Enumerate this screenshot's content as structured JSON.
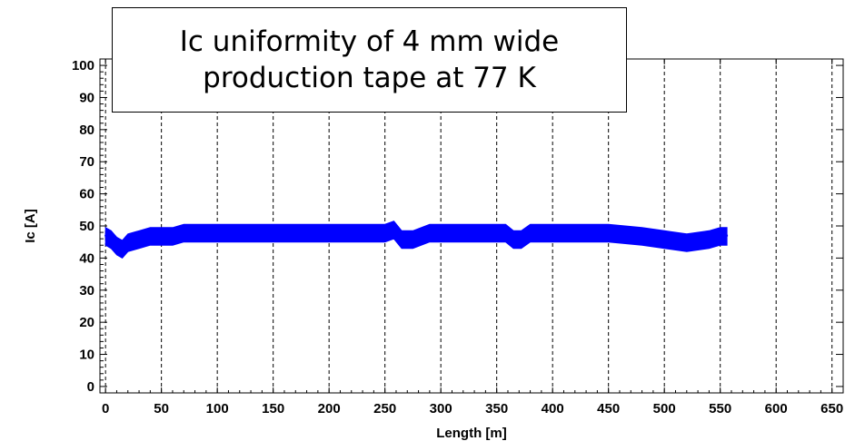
{
  "chart_data": {
    "type": "scatter",
    "title": "Ic uniformity of 4 mm wide production tape at 77 K",
    "title_lines": [
      "Ic uniformity of 4 mm wide",
      "production tape at 77 K"
    ],
    "xlabel": "Length [m]",
    "ylabel": "Ic [A]",
    "xlim": [
      -5,
      660
    ],
    "ylim": [
      -2,
      102
    ],
    "x_ticks": [
      0,
      50,
      100,
      150,
      200,
      250,
      300,
      350,
      400,
      450,
      500,
      550,
      600,
      650
    ],
    "y_ticks": [
      0,
      10,
      20,
      30,
      40,
      50,
      60,
      70,
      80,
      90,
      100
    ],
    "grid": "vertical dashed",
    "marker_color": "#0000ff",
    "series": [
      {
        "x": [
          0,
          5,
          10,
          15,
          20,
          30,
          40,
          50,
          60,
          70,
          80,
          100,
          120,
          150,
          180,
          200,
          230,
          250,
          258,
          265,
          275,
          290,
          300,
          320,
          340,
          350,
          358,
          365,
          372,
          380,
          390,
          400,
          420,
          450,
          480,
          500,
          520,
          540,
          550,
          556
        ],
        "y": [
          47,
          46,
          44,
          43,
          45,
          46,
          47,
          47,
          47,
          48,
          48,
          48,
          48,
          48,
          48,
          48,
          48,
          48,
          49,
          46,
          46,
          48,
          48,
          48,
          48,
          48,
          48,
          46,
          46,
          48,
          48,
          48,
          48,
          48,
          47,
          46,
          45,
          46,
          47,
          47
        ]
      }
    ]
  }
}
